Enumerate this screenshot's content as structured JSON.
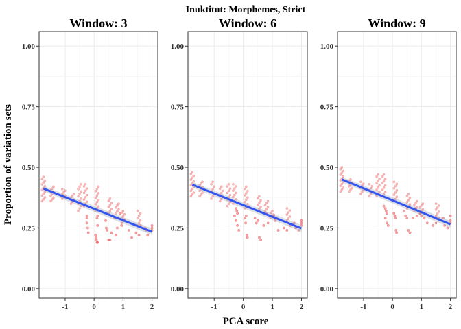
{
  "chart_data": {
    "type": "scatter",
    "title": "Inuktitut: Morphemes, Strict",
    "xlabel": "PCA score",
    "ylabel": "Proportion of variation sets",
    "xlim": [
      -1.9,
      2.2
    ],
    "ylim": [
      -0.04,
      1.06
    ],
    "xticks": [
      -1,
      0,
      1,
      2
    ],
    "xtick_labels": [
      "-1",
      "0",
      "1",
      "2"
    ],
    "yticks": [
      0,
      0.25,
      0.5,
      0.75,
      1
    ],
    "ytick_labels": [
      "0.00",
      "0.25",
      "0.50",
      "0.75",
      "1.00"
    ],
    "grid": true,
    "colors": {
      "points": "#f08080",
      "points_dense": "#e8474b",
      "fit": "#3355ee",
      "band": "#9aa6b8",
      "grid": "#ebebeb",
      "frame": "#333333"
    },
    "panels": [
      {
        "title": "Window: 3",
        "fit": {
          "x": [
            -1.75,
            2.0
          ],
          "y": [
            0.412,
            0.234
          ]
        },
        "clusters": [
          {
            "x": -1.75,
            "ymin": 0.36,
            "ymax": 0.46,
            "n": 14
          },
          {
            "x": -1.45,
            "ymin": 0.36,
            "ymax": 0.42,
            "n": 9
          },
          {
            "x": -1.05,
            "ymin": 0.37,
            "ymax": 0.41,
            "n": 7
          },
          {
            "x": -0.75,
            "ymin": 0.35,
            "ymax": 0.39,
            "n": 6
          },
          {
            "x": -0.5,
            "ymin": 0.32,
            "ymax": 0.43,
            "n": 12
          },
          {
            "x": -0.3,
            "ymin": 0.34,
            "ymax": 0.43,
            "n": 11
          },
          {
            "x": 0.1,
            "ymin": 0.32,
            "ymax": 0.42,
            "n": 12
          },
          {
            "x": 0.55,
            "ymin": 0.31,
            "ymax": 0.37,
            "n": 8
          },
          {
            "x": 0.8,
            "ymin": 0.31,
            "ymax": 0.35,
            "n": 6
          },
          {
            "x": 1.0,
            "ymin": 0.27,
            "ymax": 0.32,
            "n": 8
          },
          {
            "x": 1.55,
            "ymin": 0.26,
            "ymax": 0.32,
            "n": 7
          }
        ],
        "points": [
          [
            -0.25,
            0.3
          ],
          [
            -0.25,
            0.29
          ],
          [
            -0.25,
            0.27
          ],
          [
            -0.22,
            0.25
          ],
          [
            -0.2,
            0.23
          ],
          [
            0.05,
            0.22
          ],
          [
            0.07,
            0.21
          ],
          [
            0.08,
            0.2
          ],
          [
            0.1,
            0.19
          ],
          [
            0.12,
            0.19
          ],
          [
            0.1,
            0.29
          ],
          [
            0.12,
            0.3
          ],
          [
            0.12,
            0.26
          ],
          [
            0.4,
            0.28
          ],
          [
            0.42,
            0.25
          ],
          [
            0.45,
            0.24
          ],
          [
            0.5,
            0.2
          ],
          [
            0.55,
            0.2
          ],
          [
            0.6,
            0.23
          ],
          [
            0.7,
            0.29
          ],
          [
            0.75,
            0.22
          ],
          [
            0.8,
            0.25
          ],
          [
            0.9,
            0.31
          ],
          [
            0.95,
            0.26
          ],
          [
            1.05,
            0.28
          ],
          [
            1.2,
            0.24
          ],
          [
            1.3,
            0.21
          ],
          [
            1.45,
            0.23
          ],
          [
            1.55,
            0.22
          ],
          [
            1.6,
            0.26
          ],
          [
            1.75,
            0.25
          ],
          [
            1.8,
            0.24
          ],
          [
            1.85,
            0.22
          ],
          [
            2.0,
            0.25
          ],
          [
            2.0,
            0.26
          ],
          [
            2.0,
            0.24
          ]
        ]
      },
      {
        "title": "Window: 6",
        "fit": {
          "x": [
            -1.75,
            2.0
          ],
          "y": [
            0.428,
            0.248
          ]
        },
        "clusters": [
          {
            "x": -1.75,
            "ymin": 0.38,
            "ymax": 0.48,
            "n": 14
          },
          {
            "x": -1.45,
            "ymin": 0.38,
            "ymax": 0.44,
            "n": 9
          },
          {
            "x": -1.05,
            "ymin": 0.37,
            "ymax": 0.44,
            "n": 8
          },
          {
            "x": -0.75,
            "ymin": 0.36,
            "ymax": 0.42,
            "n": 8
          },
          {
            "x": -0.5,
            "ymin": 0.34,
            "ymax": 0.43,
            "n": 11
          },
          {
            "x": -0.3,
            "ymin": 0.35,
            "ymax": 0.43,
            "n": 10
          },
          {
            "x": 0.1,
            "ymin": 0.33,
            "ymax": 0.42,
            "n": 11
          },
          {
            "x": 0.55,
            "ymin": 0.32,
            "ymax": 0.38,
            "n": 8
          },
          {
            "x": 0.8,
            "ymin": 0.32,
            "ymax": 0.36,
            "n": 6
          },
          {
            "x": 1.0,
            "ymin": 0.29,
            "ymax": 0.32,
            "n": 5
          },
          {
            "x": 1.55,
            "ymin": 0.28,
            "ymax": 0.33,
            "n": 7
          }
        ],
        "points": [
          [
            -0.25,
            0.33
          ],
          [
            -0.22,
            0.32
          ],
          [
            -0.2,
            0.31
          ],
          [
            -0.3,
            0.3
          ],
          [
            -0.25,
            0.28
          ],
          [
            -0.2,
            0.26
          ],
          [
            -0.15,
            0.24
          ],
          [
            0.05,
            0.29
          ],
          [
            0.08,
            0.27
          ],
          [
            0.1,
            0.3
          ],
          [
            0.12,
            0.22
          ],
          [
            0.14,
            0.21
          ],
          [
            0.4,
            0.29
          ],
          [
            0.45,
            0.27
          ],
          [
            0.5,
            0.28
          ],
          [
            0.55,
            0.21
          ],
          [
            0.6,
            0.2
          ],
          [
            0.7,
            0.26
          ],
          [
            0.8,
            0.31
          ],
          [
            0.85,
            0.27
          ],
          [
            0.95,
            0.3
          ],
          [
            1.05,
            0.3
          ],
          [
            1.1,
            0.28
          ],
          [
            1.2,
            0.24
          ],
          [
            1.4,
            0.25
          ],
          [
            1.5,
            0.24
          ],
          [
            1.6,
            0.26
          ],
          [
            1.75,
            0.27
          ],
          [
            1.8,
            0.25
          ],
          [
            1.9,
            0.24
          ],
          [
            2.0,
            0.27
          ],
          [
            2.0,
            0.28
          ],
          [
            2.0,
            0.26
          ]
        ]
      },
      {
        "title": "Window: 9",
        "fit": {
          "x": [
            -1.75,
            2.0
          ],
          "y": [
            0.45,
            0.265
          ]
        },
        "clusters": [
          {
            "x": -1.75,
            "ymin": 0.4,
            "ymax": 0.5,
            "n": 14
          },
          {
            "x": -1.45,
            "ymin": 0.4,
            "ymax": 0.45,
            "n": 8
          },
          {
            "x": -1.05,
            "ymin": 0.39,
            "ymax": 0.44,
            "n": 7
          },
          {
            "x": -0.75,
            "ymin": 0.38,
            "ymax": 0.43,
            "n": 7
          },
          {
            "x": -0.5,
            "ymin": 0.38,
            "ymax": 0.47,
            "n": 11
          },
          {
            "x": -0.3,
            "ymin": 0.38,
            "ymax": 0.47,
            "n": 11
          },
          {
            "x": 0.1,
            "ymin": 0.36,
            "ymax": 0.44,
            "n": 10
          },
          {
            "x": 0.55,
            "ymin": 0.33,
            "ymax": 0.39,
            "n": 8
          },
          {
            "x": 0.8,
            "ymin": 0.32,
            "ymax": 0.36,
            "n": 6
          },
          {
            "x": 1.0,
            "ymin": 0.31,
            "ymax": 0.35,
            "n": 6
          },
          {
            "x": 1.55,
            "ymin": 0.3,
            "ymax": 0.35,
            "n": 7
          }
        ],
        "points": [
          [
            -0.3,
            0.34
          ],
          [
            -0.25,
            0.33
          ],
          [
            -0.22,
            0.32
          ],
          [
            -0.2,
            0.31
          ],
          [
            -0.25,
            0.29
          ],
          [
            -0.2,
            0.27
          ],
          [
            -0.15,
            0.26
          ],
          [
            0.05,
            0.31
          ],
          [
            0.08,
            0.3
          ],
          [
            0.1,
            0.29
          ],
          [
            0.12,
            0.24
          ],
          [
            0.14,
            0.23
          ],
          [
            0.4,
            0.32
          ],
          [
            0.45,
            0.3
          ],
          [
            0.5,
            0.29
          ],
          [
            0.55,
            0.24
          ],
          [
            0.6,
            0.23
          ],
          [
            0.7,
            0.29
          ],
          [
            0.8,
            0.33
          ],
          [
            0.85,
            0.3
          ],
          [
            0.95,
            0.31
          ],
          [
            1.0,
            0.3
          ],
          [
            1.1,
            0.29
          ],
          [
            1.2,
            0.27
          ],
          [
            1.4,
            0.26
          ],
          [
            1.5,
            0.27
          ],
          [
            1.6,
            0.29
          ],
          [
            1.75,
            0.29
          ],
          [
            1.8,
            0.26
          ],
          [
            1.9,
            0.25
          ],
          [
            2.0,
            0.3
          ],
          [
            2.0,
            0.28
          ],
          [
            2.0,
            0.27
          ]
        ]
      }
    ]
  }
}
